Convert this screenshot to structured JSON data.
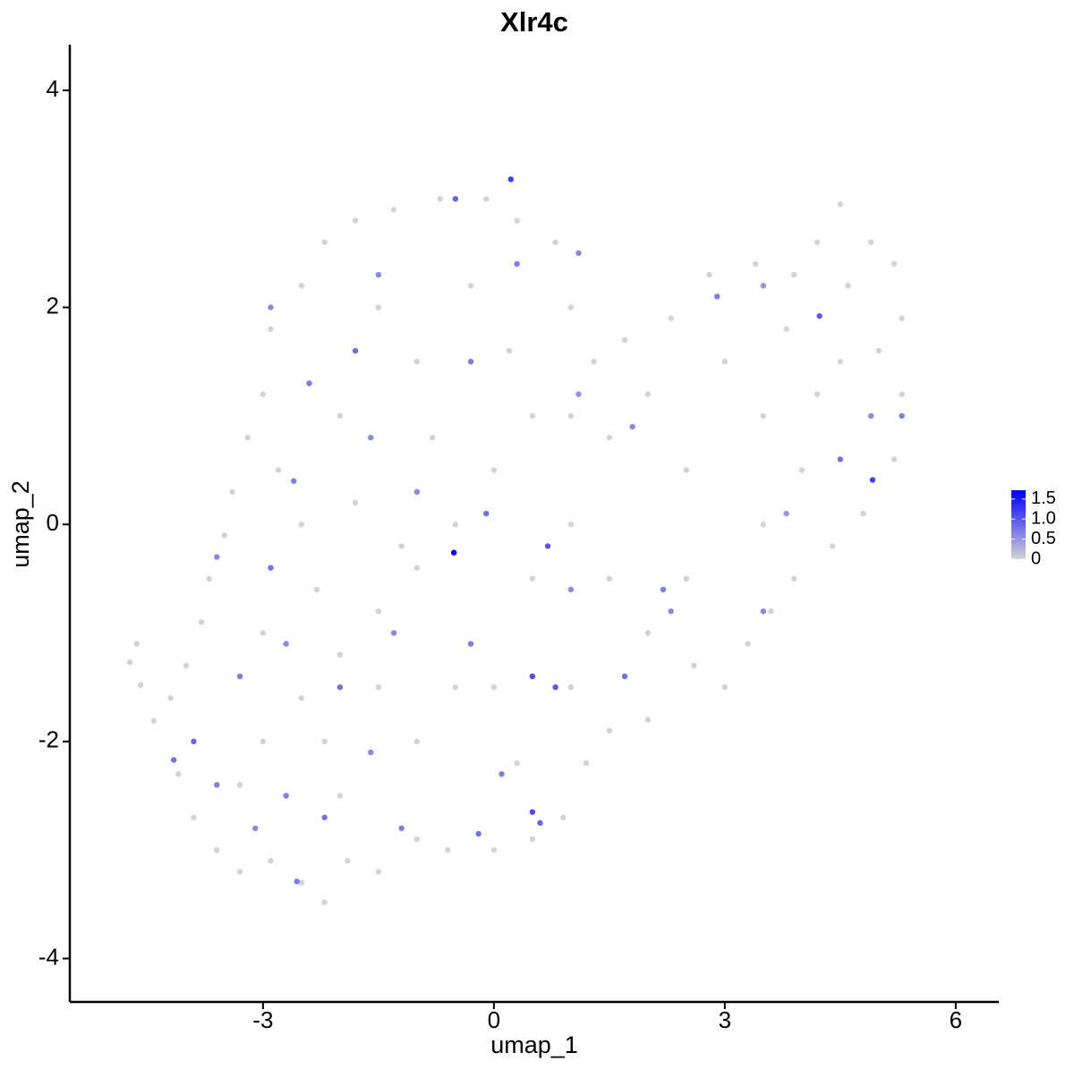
{
  "chart_data": {
    "type": "scatter",
    "title": "Xlr4c",
    "x_label": "umap_1",
    "y_label": "umap_2",
    "xlim": [
      -5.51,
      6.56
    ],
    "ylim": [
      -4.4,
      4.42
    ],
    "xticks": [
      -3,
      0,
      3,
      6
    ],
    "yticks": [
      -4,
      -2,
      0,
      2,
      4
    ],
    "low_color": "#d3d3d3",
    "high_color": "#0000ff",
    "clim": [
      0,
      1.72
    ],
    "cticks": [
      0,
      0.5,
      {
        "value": 1,
        "label": "1.0"
      },
      1.5
    ],
    "cticks_fix": null,
    "x": [
      -4.73,
      -4.64,
      -4.59,
      -4.42,
      -4.1,
      -3.9,
      -3.6,
      -3.3,
      -2.9,
      -2.5,
      -2.2,
      -1.9,
      -1.5,
      -1.0,
      -0.6,
      0.0,
      0.5,
      0.9,
      1.2,
      1.5,
      2.0,
      2.6,
      3.0,
      3.3,
      3.6,
      3.9,
      4.4,
      4.8,
      5.2,
      5.3,
      5.3,
      5.2,
      4.9,
      4.5,
      4.2,
      3.9,
      3.4,
      2.8,
      2.3,
      1.7,
      1.3,
      1.0,
      0.8,
      0.3,
      -0.1,
      -0.7,
      -1.3,
      -1.8,
      -2.2,
      -2.5,
      -2.9,
      -3.0,
      -3.2,
      -3.4,
      -3.5,
      -3.7,
      -3.8,
      -4.0,
      -4.2,
      -3.0,
      -2.5,
      -2.0,
      -1.5,
      -1.0,
      -0.5,
      0.0,
      0.5,
      -1.0,
      -1.5,
      -2.0,
      -2.5,
      -3.0,
      -2.0,
      -1.0,
      0.0,
      0.5,
      1.0,
      1.5,
      2.0,
      2.5,
      3.0,
      3.5,
      4.0,
      4.5,
      3.5,
      2.5,
      2.0,
      1.0,
      0.3,
      -0.5,
      -1.5,
      -2.2,
      -3.3,
      -2.8,
      -1.8,
      -0.8,
      0.2,
      -0.3,
      1.0,
      4.6,
      5.0,
      4.2,
      3.8,
      1.5,
      -1.2,
      -2.3,
      -2.9,
      -2.4,
      -1.8,
      -1.5,
      -0.5,
      0.3,
      1.1,
      1.1,
      1.8,
      2.9,
      3.5,
      4.9,
      5.3,
      4.5,
      3.8,
      3.5,
      2.2,
      0.7,
      1.0,
      0.8,
      0.5,
      0.6,
      -0.2,
      -1.2,
      -2.2,
      -3.1,
      -3.6,
      -3.9,
      -3.3,
      -2.7,
      -2.0,
      -1.3,
      -0.3,
      0.5,
      -1.0,
      -0.1,
      -2.9,
      -3.6,
      -2.6,
      -1.6,
      -0.3,
      2.3,
      1.7,
      -2.7,
      -1.6,
      0.1,
      -4.16,
      -2.56,
      4.23,
      0.22,
      4.92,
      -0.52
    ],
    "y": [
      -1.27,
      -1.1,
      -1.48,
      -1.81,
      -2.3,
      -2.7,
      -3.0,
      -3.2,
      -3.1,
      -3.3,
      -3.48,
      -3.1,
      -3.2,
      -2.9,
      -3.0,
      -3.0,
      -2.9,
      -2.7,
      -2.2,
      -1.9,
      -1.8,
      -1.3,
      -1.5,
      -1.1,
      -0.8,
      -0.5,
      -0.2,
      0.1,
      0.6,
      1.2,
      1.9,
      2.4,
      2.6,
      2.95,
      2.6,
      2.3,
      2.4,
      2.3,
      1.9,
      1.7,
      1.5,
      2.0,
      2.6,
      2.8,
      3.0,
      3.0,
      2.9,
      2.8,
      2.6,
      2.2,
      1.8,
      1.2,
      0.8,
      0.3,
      -0.1,
      -0.5,
      -0.9,
      -1.3,
      -1.6,
      -2.0,
      -1.6,
      -1.2,
      -0.8,
      -0.4,
      0.0,
      0.5,
      1.0,
      1.5,
      2.0,
      1.0,
      0.0,
      -1.0,
      -2.5,
      -2.0,
      -1.5,
      -0.5,
      0.0,
      0.8,
      1.2,
      0.5,
      1.5,
      1.0,
      0.5,
      1.5,
      0.0,
      -0.5,
      -1.0,
      -1.5,
      -2.2,
      -1.5,
      -1.5,
      -2.0,
      -2.4,
      0.5,
      0.2,
      0.8,
      1.6,
      2.2,
      1.0,
      2.2,
      1.6,
      1.2,
      1.8,
      -0.5,
      -0.2,
      -0.6,
      2.0,
      1.3,
      1.6,
      2.3,
      3.0,
      2.4,
      2.5,
      1.2,
      0.9,
      2.1,
      2.2,
      1.0,
      1.0,
      0.6,
      0.1,
      -0.8,
      -0.6,
      -0.2,
      -0.6,
      -1.5,
      -2.65,
      -2.75,
      -2.85,
      -2.8,
      -2.7,
      -2.8,
      -2.4,
      -2.0,
      -1.4,
      -1.1,
      -1.5,
      -1.0,
      -1.1,
      -1.4,
      0.3,
      0.1,
      -0.4,
      -0.3,
      0.4,
      0.8,
      1.5,
      -0.8,
      -1.4,
      -2.5,
      -2.1,
      -2.3,
      -2.17,
      -3.29,
      1.92,
      3.18,
      0.41,
      -0.26
    ],
    "values": [
      0,
      0,
      0,
      0,
      0,
      0,
      0,
      0,
      0,
      0,
      0,
      0,
      0,
      0,
      0,
      0,
      0,
      0,
      0,
      0,
      0,
      0,
      0,
      0,
      0,
      0,
      0,
      0,
      0,
      0,
      0,
      0,
      0,
      0,
      0,
      0,
      0,
      0,
      0,
      0,
      0,
      0,
      0,
      0,
      0,
      0,
      0,
      0,
      0,
      0,
      0,
      0,
      0,
      0,
      0,
      0,
      0,
      0,
      0,
      0,
      0,
      0,
      0,
      0,
      0,
      0,
      0,
      0,
      0,
      0,
      0,
      0,
      0,
      0,
      0,
      0,
      0,
      0,
      0,
      0,
      0,
      0,
      0,
      0,
      0,
      0,
      0,
      0,
      0,
      0,
      0,
      0,
      0,
      0,
      0,
      0,
      0,
      0,
      0,
      0,
      0,
      0,
      0,
      0,
      0,
      0,
      0.6,
      0.7,
      0.8,
      0.6,
      0.9,
      0.7,
      0.6,
      0.5,
      0.6,
      0.7,
      0.5,
      0.6,
      0.7,
      0.8,
      0.5,
      0.6,
      0.7,
      1.0,
      0.6,
      1.0,
      1.1,
      0.9,
      0.8,
      0.7,
      0.8,
      0.6,
      0.7,
      0.9,
      0.7,
      0.6,
      0.8,
      0.6,
      0.7,
      1.1,
      0.6,
      0.8,
      0.8,
      0.6,
      0.7,
      0.6,
      0.7,
      0.6,
      0.8,
      0.7,
      0.6,
      0.7,
      0.8,
      0.7,
      1.0,
      1.2,
      1.2,
      1.72
    ]
  }
}
